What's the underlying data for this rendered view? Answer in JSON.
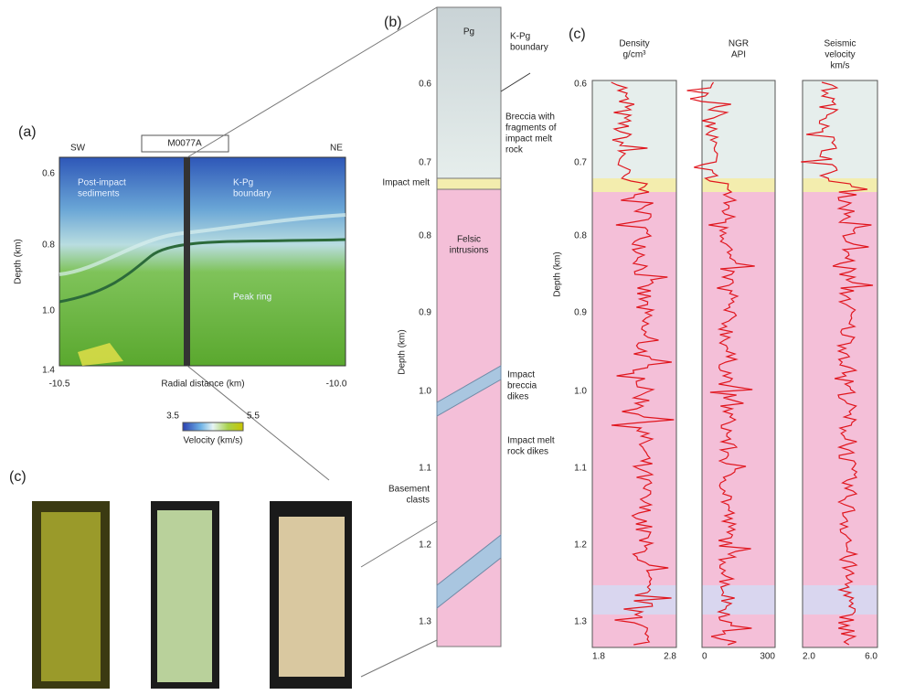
{
  "panel_labels": [
    "(a)",
    "(b)",
    "(c)",
    "(c)"
  ],
  "section": {
    "well": "M0077A",
    "left_dir": "SW",
    "right_dir": "NE",
    "y_label": "Depth (km)",
    "y_ticks": [
      "0.6",
      "0.8",
      "1.0",
      "1.4"
    ],
    "x_label": "Radial distance (km)",
    "x_ticks": [
      "-10.5",
      "-10.0"
    ],
    "units": [
      [
        "Post-impact",
        "sediments"
      ],
      [
        "K-Pg",
        "boundary"
      ],
      [
        "Peak ring"
      ]
    ],
    "colorbar": {
      "min": "3.5",
      "max": "5.5",
      "label": "Velocity (km/s)"
    }
  },
  "column": {
    "y_label": "Depth (km)",
    "y_ticks": [
      "0.6",
      "0.7",
      "0.8",
      "0.9",
      "1.0",
      "1.1",
      "1.2",
      "1.3"
    ],
    "inside": [
      "Pg",
      [
        "Felsic",
        "intrusions"
      ]
    ],
    "right_notes": [
      [
        "K-Pg",
        "boundary"
      ],
      [
        "Breccia with",
        "fragments of",
        "impact melt",
        "rock"
      ],
      [
        "Impact",
        "breccia",
        "dikes"
      ],
      [
        "Impact melt",
        "rock dikes"
      ]
    ],
    "left_notes": [
      "Impact melt",
      [
        "Basement",
        "clasts"
      ]
    ]
  },
  "logs": {
    "y_label": "Depth (km)",
    "y_ticks": [
      "0.6",
      "0.7",
      "0.8",
      "0.9",
      "1.0",
      "1.1",
      "1.2",
      "1.3"
    ],
    "tracks": [
      {
        "title": [
          "Density",
          "g/cm³"
        ],
        "min": "1.8",
        "max": "2.8"
      },
      {
        "title": [
          "NGR",
          "API"
        ],
        "min": "0",
        "max": "300"
      },
      {
        "title": [
          "Seismic",
          "velocity",
          "km/s"
        ],
        "min": "2.0",
        "max": "6.0"
      }
    ]
  }
}
